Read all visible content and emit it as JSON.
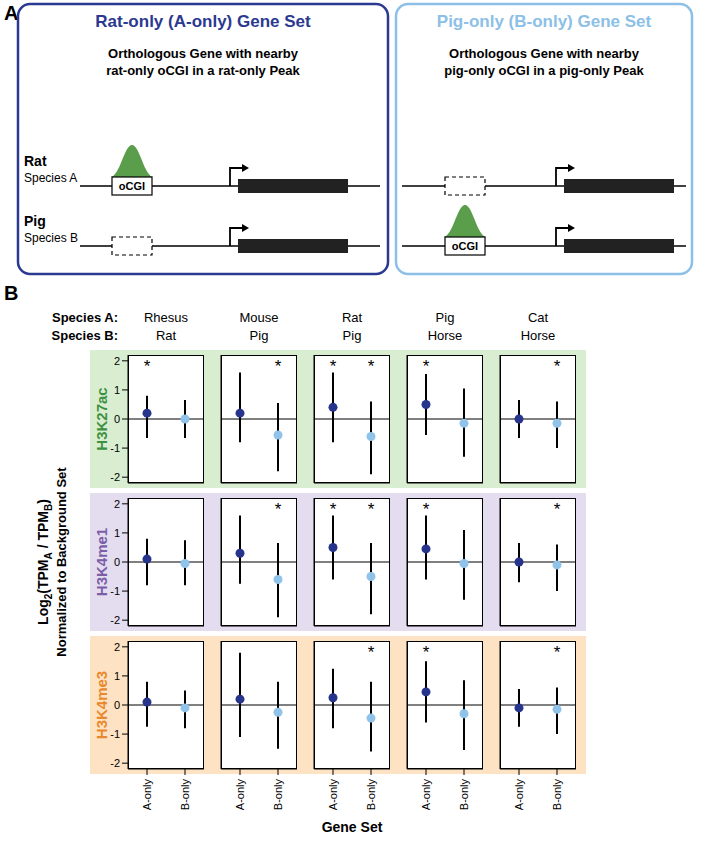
{
  "panel_a": {
    "label": "A",
    "element_label": "oCGI",
    "peak_color": "#5a9e4b",
    "tracks": [
      {
        "name": "Rat",
        "species": "Species A"
      },
      {
        "name": "Pig",
        "species": "Species B"
      }
    ],
    "boxes": [
      {
        "title": "Rat-only (A-only) Gene Set",
        "color": "#2b3990",
        "subtitle": [
          "Orthologous Gene with nearby",
          "rat-only oCGI in a rat-only Peak"
        ],
        "peak_species": "Rat"
      },
      {
        "title": "Pig-only (B-only) Gene Set",
        "color": "#8cc0e6",
        "subtitle": [
          "Orthologous Gene with nearby",
          "pig-only oCGI in a pig-only Peak"
        ],
        "peak_species": "Pig"
      }
    ]
  },
  "panel_b": {
    "label": "B",
    "species_a_label": "Species A:",
    "species_b_label": "Species B:",
    "columns": [
      {
        "a": "Rhesus",
        "b": "Rat"
      },
      {
        "a": "Mouse",
        "b": "Pig"
      },
      {
        "a": "Rat",
        "b": "Pig"
      },
      {
        "a": "Pig",
        "b": "Horse"
      },
      {
        "a": "Cat",
        "b": "Horse"
      }
    ],
    "rows": [
      {
        "label": "H3K27ac",
        "color": "#3f9142",
        "background": "#d9eed0"
      },
      {
        "label": "H3K4me1",
        "color": "#7b5ea7",
        "background": "#e4ddf0"
      },
      {
        "label": "H3K4me3",
        "color": "#e8892b",
        "background": "#fde2c4"
      }
    ],
    "y_label": [
      {
        "text": "Log",
        "sub": false
      },
      {
        "text": "2",
        "sub": true
      },
      {
        "text": "(TPM",
        "sub": false
      },
      {
        "text": "A",
        "sub": true
      },
      {
        "text": " / TPM",
        "sub": false
      },
      {
        "text": "B",
        "sub": true
      },
      {
        "text": ")",
        "sub": false
      }
    ],
    "y_label_2": "Normalized to Background Set",
    "x_label": "Gene Set"
  },
  "chart_data": [
    {
      "type": "scatter",
      "categories": [
        "A-only",
        "B-only"
      ],
      "values": [
        0.2,
        0.0
      ],
      "error_low": [
        -0.65,
        -0.65
      ],
      "error_high": [
        0.8,
        0.65
      ],
      "annotations": [
        "*",
        null
      ],
      "colors": [
        "#27348b",
        "#8fc3ea"
      ],
      "ylim": [
        -2.2,
        2.2
      ],
      "yticks": [
        -2,
        -1,
        0,
        1,
        2
      ],
      "baseline": 0,
      "tick_labels": "y"
    },
    {
      "type": "scatter",
      "categories": [
        "A-only",
        "B-only"
      ],
      "values": [
        0.2,
        -0.55
      ],
      "error_low": [
        -0.8,
        -1.8
      ],
      "error_high": [
        1.6,
        0.55
      ],
      "annotations": [
        null,
        "*"
      ],
      "colors": [
        "#27348b",
        "#8fc3ea"
      ],
      "ylim": [
        -2.2,
        2.2
      ],
      "yticks": [
        -2,
        -1,
        0,
        1,
        2
      ],
      "baseline": 0,
      "tick_labels": false
    },
    {
      "type": "scatter",
      "categories": [
        "A-only",
        "B-only"
      ],
      "values": [
        0.4,
        -0.6
      ],
      "error_low": [
        -0.8,
        -1.9
      ],
      "error_high": [
        1.6,
        0.6
      ],
      "annotations": [
        "*",
        "*"
      ],
      "colors": [
        "#27348b",
        "#8fc3ea"
      ],
      "ylim": [
        -2.2,
        2.2
      ],
      "yticks": [
        -2,
        -1,
        0,
        1,
        2
      ],
      "baseline": 0,
      "tick_labels": false
    },
    {
      "type": "scatter",
      "categories": [
        "A-only",
        "B-only"
      ],
      "values": [
        0.5,
        -0.15
      ],
      "error_low": [
        -0.55,
        -1.3
      ],
      "error_high": [
        1.55,
        1.05
      ],
      "annotations": [
        "*",
        null
      ],
      "colors": [
        "#27348b",
        "#8fc3ea"
      ],
      "ylim": [
        -2.2,
        2.2
      ],
      "yticks": [
        -2,
        -1,
        0,
        1,
        2
      ],
      "baseline": 0,
      "tick_labels": false
    },
    {
      "type": "scatter",
      "categories": [
        "A-only",
        "B-only"
      ],
      "values": [
        0.0,
        -0.15
      ],
      "error_low": [
        -0.65,
        -1.0
      ],
      "error_high": [
        0.65,
        0.6
      ],
      "annotations": [
        null,
        "*"
      ],
      "colors": [
        "#27348b",
        "#8fc3ea"
      ],
      "ylim": [
        -2.2,
        2.2
      ],
      "yticks": [
        -2,
        -1,
        0,
        1,
        2
      ],
      "baseline": 0,
      "tick_labels": false
    },
    {
      "type": "scatter",
      "categories": [
        "A-only",
        "B-only"
      ],
      "values": [
        0.1,
        -0.05
      ],
      "error_low": [
        -0.8,
        -0.8
      ],
      "error_high": [
        0.8,
        0.75
      ],
      "annotations": [
        null,
        null
      ],
      "colors": [
        "#27348b",
        "#8fc3ea"
      ],
      "ylim": [
        -2.2,
        2.2
      ],
      "yticks": [
        -2,
        -1,
        0,
        1,
        2
      ],
      "baseline": 0,
      "tick_labels": "y"
    },
    {
      "type": "scatter",
      "categories": [
        "A-only",
        "B-only"
      ],
      "values": [
        0.3,
        -0.6
      ],
      "error_low": [
        -0.75,
        -1.9
      ],
      "error_high": [
        1.6,
        0.65
      ],
      "annotations": [
        null,
        "*"
      ],
      "colors": [
        "#27348b",
        "#8fc3ea"
      ],
      "ylim": [
        -2.2,
        2.2
      ],
      "yticks": [
        -2,
        -1,
        0,
        1,
        2
      ],
      "baseline": 0,
      "tick_labels": false
    },
    {
      "type": "scatter",
      "categories": [
        "A-only",
        "B-only"
      ],
      "values": [
        0.5,
        -0.5
      ],
      "error_low": [
        -0.6,
        -1.8
      ],
      "error_high": [
        1.6,
        0.65
      ],
      "annotations": [
        "*",
        "*"
      ],
      "colors": [
        "#27348b",
        "#8fc3ea"
      ],
      "ylim": [
        -2.2,
        2.2
      ],
      "yticks": [
        -2,
        -1,
        0,
        1,
        2
      ],
      "baseline": 0,
      "tick_labels": false
    },
    {
      "type": "scatter",
      "categories": [
        "A-only",
        "B-only"
      ],
      "values": [
        0.45,
        -0.05
      ],
      "error_low": [
        -0.6,
        -1.3
      ],
      "error_high": [
        1.6,
        1.1
      ],
      "annotations": [
        "*",
        null
      ],
      "colors": [
        "#27348b",
        "#8fc3ea"
      ],
      "ylim": [
        -2.2,
        2.2
      ],
      "yticks": [
        -2,
        -1,
        0,
        1,
        2
      ],
      "baseline": 0,
      "tick_labels": false
    },
    {
      "type": "scatter",
      "categories": [
        "A-only",
        "B-only"
      ],
      "values": [
        0.0,
        -0.1
      ],
      "error_low": [
        -0.7,
        -1.0
      ],
      "error_high": [
        0.65,
        0.6
      ],
      "annotations": [
        null,
        "*"
      ],
      "colors": [
        "#27348b",
        "#8fc3ea"
      ],
      "ylim": [
        -2.2,
        2.2
      ],
      "yticks": [
        -2,
        -1,
        0,
        1,
        2
      ],
      "baseline": 0,
      "tick_labels": false
    },
    {
      "type": "scatter",
      "categories": [
        "A-only",
        "B-only"
      ],
      "values": [
        0.1,
        -0.1
      ],
      "error_low": [
        -0.75,
        -0.8
      ],
      "error_high": [
        0.8,
        0.5
      ],
      "annotations": [
        null,
        null
      ],
      "colors": [
        "#27348b",
        "#8fc3ea"
      ],
      "ylim": [
        -2.2,
        2.2
      ],
      "yticks": [
        -2,
        -1,
        0,
        1,
        2
      ],
      "baseline": 0
    },
    {
      "type": "scatter",
      "categories": [
        "A-only",
        "B-only"
      ],
      "values": [
        0.2,
        -0.25
      ],
      "error_low": [
        -1.1,
        -1.5
      ],
      "error_high": [
        1.8,
        0.8
      ],
      "annotations": [
        null,
        null
      ],
      "colors": [
        "#27348b",
        "#8fc3ea"
      ],
      "ylim": [
        -2.2,
        2.2
      ],
      "yticks": [
        -2,
        -1,
        0,
        1,
        2
      ],
      "baseline": 0,
      "tick_labels": "x"
    },
    {
      "type": "scatter",
      "categories": [
        "A-only",
        "B-only"
      ],
      "values": [
        0.25,
        -0.45
      ],
      "error_low": [
        -0.8,
        -1.6
      ],
      "error_high": [
        1.25,
        0.8
      ],
      "annotations": [
        null,
        "*"
      ],
      "colors": [
        "#27348b",
        "#8fc3ea"
      ],
      "ylim": [
        -2.2,
        2.2
      ],
      "yticks": [
        -2,
        -1,
        0,
        1,
        2
      ],
      "baseline": 0,
      "tick_labels": "x"
    },
    {
      "type": "scatter",
      "categories": [
        "A-only",
        "B-only"
      ],
      "values": [
        0.45,
        -0.3
      ],
      "error_low": [
        -0.6,
        -1.55
      ],
      "error_high": [
        1.5,
        0.85
      ],
      "annotations": [
        "*",
        null
      ],
      "colors": [
        "#27348b",
        "#8fc3ea"
      ],
      "ylim": [
        -2.2,
        2.2
      ],
      "yticks": [
        -2,
        -1,
        0,
        1,
        2
      ],
      "baseline": 0,
      "tick_labels": "x"
    },
    {
      "type": "scatter",
      "categories": [
        "A-only",
        "B-only"
      ],
      "values": [
        -0.1,
        -0.15
      ],
      "error_low": [
        -0.75,
        -1.0
      ],
      "error_high": [
        0.55,
        0.6
      ],
      "annotations": [
        null,
        "*"
      ],
      "colors": [
        "#27348b",
        "#8fc3ea"
      ],
      "ylim": [
        -2.2,
        2.2
      ],
      "yticks": [
        -2,
        -1,
        0,
        1,
        2
      ],
      "baseline": 0,
      "tick_labels": "x"
    }
  ]
}
